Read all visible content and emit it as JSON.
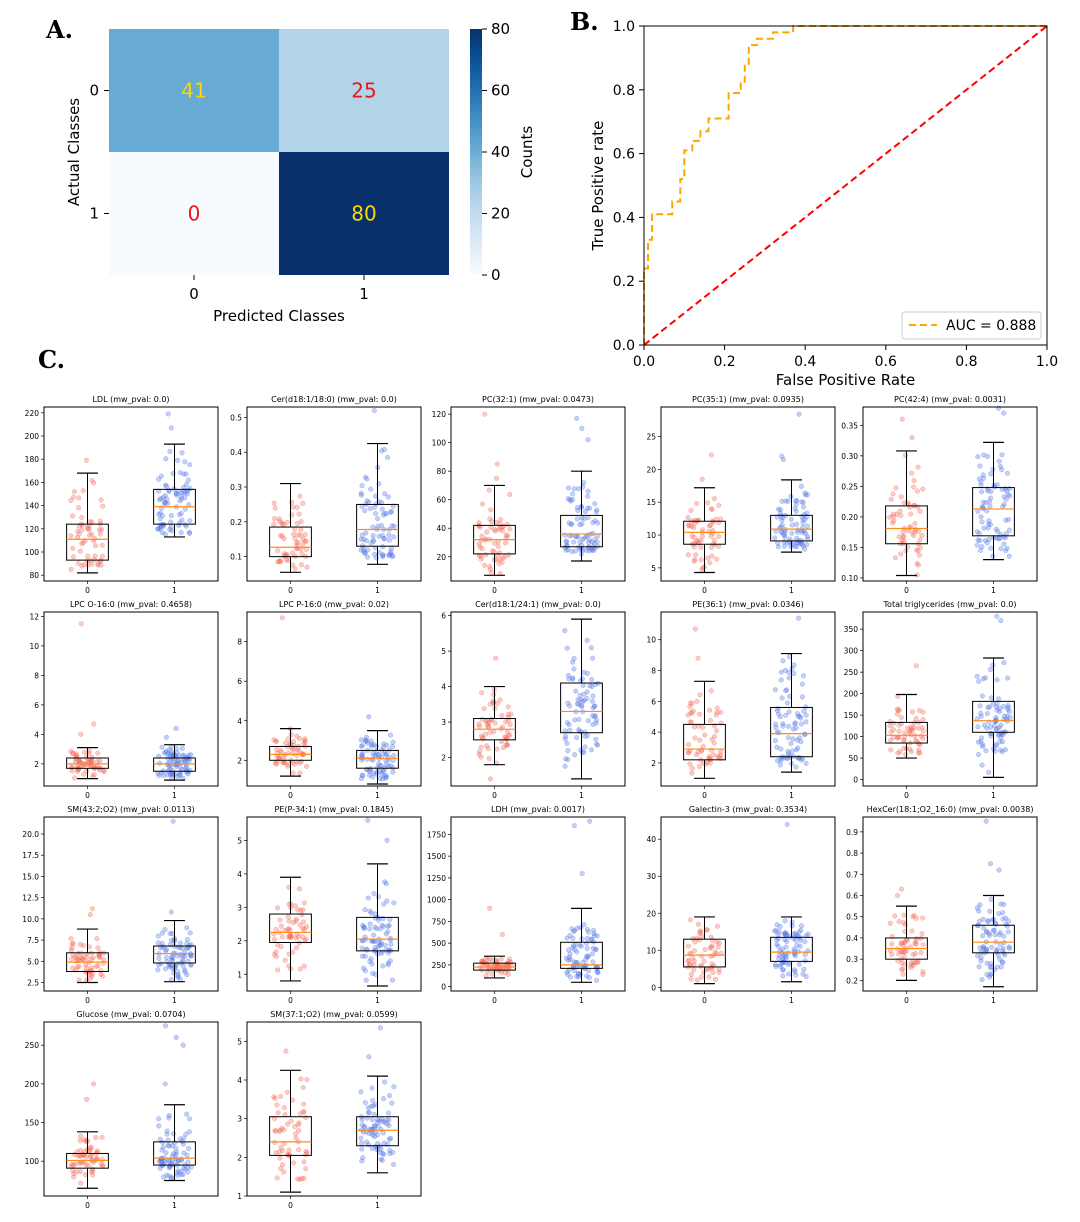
{
  "labels": {
    "a": "A.",
    "b": "B.",
    "c": "C."
  },
  "chart_data": [
    {
      "type": "heatmap",
      "title": "",
      "xlabel": "Predicted Classes",
      "ylabel": "Actual Classes",
      "x_categories": [
        "0",
        "1"
      ],
      "y_categories": [
        "0",
        "1"
      ],
      "values": [
        [
          41,
          25
        ],
        [
          0,
          80
        ]
      ],
      "colorbar": {
        "label": "Counts",
        "range": [
          0,
          80
        ],
        "ticks": [
          0,
          20,
          40,
          60,
          80
        ]
      },
      "annotation_colors": [
        [
          "#ffd700",
          "#e8191c"
        ],
        [
          "#e8191c",
          "#ffd700"
        ]
      ]
    },
    {
      "type": "line",
      "xlabel": "False Positive Rate",
      "ylabel": "True Positive rate",
      "xlim": [
        0,
        1
      ],
      "ylim": [
        0,
        1
      ],
      "xticks": [
        "0.0",
        "0.2",
        "0.4",
        "0.6",
        "0.8",
        "1.0"
      ],
      "yticks": [
        "0.0",
        "0.2",
        "0.4",
        "0.6",
        "0.8",
        "1.0"
      ],
      "legend": {
        "position": "bottom-right",
        "entry": "AUC = 0.888"
      },
      "series": [
        {
          "name": "AUC = 0.888",
          "color": "#ffa500",
          "style": "dashed",
          "x": [
            0,
            0,
            0.01,
            0.01,
            0.02,
            0.02,
            0.07,
            0.07,
            0.09,
            0.09,
            0.1,
            0.1,
            0.12,
            0.12,
            0.14,
            0.14,
            0.16,
            0.16,
            0.21,
            0.21,
            0.24,
            0.24,
            0.25,
            0.25,
            0.26,
            0.26,
            0.28,
            0.28,
            0.32,
            0.32,
            0.37,
            0.37,
            1.0
          ],
          "y": [
            0,
            0.24,
            0.24,
            0.33,
            0.33,
            0.41,
            0.41,
            0.45,
            0.45,
            0.52,
            0.52,
            0.61,
            0.61,
            0.64,
            0.64,
            0.67,
            0.67,
            0.71,
            0.71,
            0.79,
            0.79,
            0.82,
            0.82,
            0.88,
            0.88,
            0.94,
            0.94,
            0.96,
            0.96,
            0.98,
            0.98,
            1.0,
            1.0
          ]
        },
        {
          "name": "chance",
          "color": "#ff0000",
          "style": "dashed",
          "x": [
            0,
            1
          ],
          "y": [
            0,
            1
          ]
        }
      ]
    },
    {
      "type": "boxplot",
      "categories": [
        "0",
        "1"
      ],
      "colors": {
        "0": "#f4695a",
        "1": "#5578e6",
        "median": "#ff8c1a"
      },
      "panels": [
        {
          "title": "LDL (mw_pval: 0.0)",
          "ylim": [
            75,
            225
          ],
          "yticks": [
            80,
            100,
            120,
            140,
            160,
            180,
            200,
            220
          ],
          "boxes": [
            {
              "lo": 82,
              "q1": 93,
              "med": 111,
              "q3": 124,
              "hi": 168,
              "out": [
                179
              ]
            },
            {
              "lo": 113,
              "q1": 124,
              "med": 139,
              "q3": 154,
              "hi": 193,
              "out": [
                207,
                219
              ]
            }
          ]
        },
        {
          "title": "Cer(d18:1/18:0) (mw_pval: 0.0)",
          "ylim": [
            0.03,
            0.53
          ],
          "yticks": [
            0.1,
            0.2,
            0.3,
            0.4,
            0.5
          ],
          "boxes": [
            {
              "lo": 0.055,
              "q1": 0.1,
              "med": 0.127,
              "q3": 0.185,
              "hi": 0.31,
              "out": []
            },
            {
              "lo": 0.078,
              "q1": 0.13,
              "med": 0.178,
              "q3": 0.25,
              "hi": 0.425,
              "out": [
                0.52
              ]
            }
          ]
        },
        {
          "title": "PC(32:1) (mw_pval: 0.0473)",
          "ylim": [
            3,
            125
          ],
          "yticks": [
            20,
            40,
            60,
            80,
            100,
            120
          ],
          "boxes": [
            {
              "lo": 7,
              "q1": 22,
              "med": 32,
              "q3": 42,
              "hi": 70,
              "out": [
                75,
                85,
                120
              ]
            },
            {
              "lo": 17,
              "q1": 27,
              "med": 36,
              "q3": 49,
              "hi": 80,
              "out": [
                102,
                110,
                117
              ]
            }
          ]
        },
        {
          "title": "PC(35:1) (mw_pval: 0.0935)",
          "ylim": [
            3,
            29.5
          ],
          "yticks": [
            5,
            10,
            15,
            20,
            25
          ],
          "boxes": [
            {
              "lo": 4.3,
              "q1": 8.6,
              "med": 10.4,
              "q3": 12.1,
              "hi": 17.2,
              "out": [
                18.5,
                22.2
              ]
            },
            {
              "lo": 7.4,
              "q1": 9.1,
              "med": 10.9,
              "q3": 13.0,
              "hi": 18.4,
              "out": [
                21.5,
                22,
                28.4
              ]
            }
          ]
        },
        {
          "title": "PC(42:4) (mw_pval: 0.0031)",
          "ylim": [
            0.095,
            0.38
          ],
          "yticks": [
            0.1,
            0.15,
            0.2,
            0.25,
            0.3,
            0.35
          ],
          "boxes": [
            {
              "lo": 0.104,
              "q1": 0.156,
              "med": 0.181,
              "q3": 0.218,
              "hi": 0.308,
              "out": [
                0.33,
                0.36
              ]
            },
            {
              "lo": 0.13,
              "q1": 0.169,
              "med": 0.213,
              "q3": 0.248,
              "hi": 0.322,
              "out": [
                0.37,
                0.378
              ]
            }
          ]
        },
        {
          "title": "LPC O-16:0 (mw_pval: 0.4658)",
          "ylim": [
            0.5,
            12.3
          ],
          "yticks": [
            2,
            4,
            6,
            8,
            10,
            12
          ],
          "boxes": [
            {
              "lo": 1.0,
              "q1": 1.7,
              "med": 2.0,
              "q3": 2.4,
              "hi": 3.1,
              "out": [
                4.0,
                4.7,
                11.5
              ]
            },
            {
              "lo": 0.9,
              "q1": 1.5,
              "med": 2.0,
              "q3": 2.4,
              "hi": 3.3,
              "out": [
                3.8,
                4.4
              ]
            }
          ]
        },
        {
          "title": "LPC P-16:0 (mw_pval: 0.02)",
          "ylim": [
            0.7,
            9.5
          ],
          "yticks": [
            2,
            4,
            6,
            8
          ],
          "boxes": [
            {
              "lo": 1.2,
              "q1": 2.0,
              "med": 2.3,
              "q3": 2.7,
              "hi": 3.6,
              "out": [
                9.2
              ]
            },
            {
              "lo": 0.8,
              "q1": 1.6,
              "med": 2.1,
              "q3": 2.5,
              "hi": 3.5,
              "out": [
                4.2
              ]
            }
          ]
        },
        {
          "title": "Cer(d18:1/24:1) (mw_pval: 0.0)",
          "ylim": [
            1.2,
            6.1
          ],
          "yticks": [
            2,
            3,
            4,
            5,
            6
          ],
          "boxes": [
            {
              "lo": 1.8,
              "q1": 2.5,
              "med": 2.8,
              "q3": 3.1,
              "hi": 4.0,
              "out": [
                1.4,
                4.8
              ]
            },
            {
              "lo": 1.4,
              "q1": 2.7,
              "med": 3.3,
              "q3": 4.1,
              "hi": 5.9,
              "out": []
            }
          ]
        },
        {
          "title": "PE(36:1) (mw_pval: 0.0346)",
          "ylim": [
            0.5,
            11.8
          ],
          "yticks": [
            2,
            4,
            6,
            8,
            10
          ],
          "boxes": [
            {
              "lo": 1.0,
              "q1": 2.2,
              "med": 2.9,
              "q3": 4.5,
              "hi": 7.3,
              "out": [
                8.8,
                10.7
              ]
            },
            {
              "lo": 1.4,
              "q1": 2.4,
              "med": 3.9,
              "q3": 5.6,
              "hi": 9.1,
              "out": [
                11.4
              ]
            }
          ]
        },
        {
          "title": "Total triglycerides (mw_pval: 0.0)",
          "ylim": [
            -15,
            390
          ],
          "yticks": [
            0,
            50,
            100,
            150,
            200,
            250,
            300,
            350
          ],
          "boxes": [
            {
              "lo": 50,
              "q1": 85,
              "med": 103,
              "q3": 133,
              "hi": 198,
              "out": [
                265
              ]
            },
            {
              "lo": 5,
              "q1": 110,
              "med": 137,
              "q3": 182,
              "hi": 283,
              "out": [
                370,
                380
              ]
            }
          ]
        },
        {
          "title": "SM(43:2;O2) (mw_pval: 0.0113)",
          "ylim": [
            1.5,
            22
          ],
          "yticks": [
            2.5,
            5.0,
            7.5,
            10.0,
            12.5,
            15.0,
            17.5,
            20.0
          ],
          "boxes": [
            {
              "lo": 2.5,
              "q1": 3.8,
              "med": 4.9,
              "q3": 6.0,
              "hi": 8.8,
              "out": [
                10.5,
                11.2
              ]
            },
            {
              "lo": 2.6,
              "q1": 4.8,
              "med": 5.9,
              "q3": 6.8,
              "hi": 9.8,
              "out": [
                10.8,
                21.5
              ]
            }
          ]
        },
        {
          "title": "PE(P-34:1) (mw_pval: 0.1845)",
          "ylim": [
            0.5,
            5.7
          ],
          "yticks": [
            1,
            2,
            3,
            4,
            5
          ],
          "boxes": [
            {
              "lo": 0.8,
              "q1": 1.95,
              "med": 2.25,
              "q3": 2.8,
              "hi": 3.9,
              "out": []
            },
            {
              "lo": 0.65,
              "q1": 1.7,
              "med": 2.05,
              "q3": 2.7,
              "hi": 4.3,
              "out": [
                5.0,
                5.6
              ]
            }
          ]
        },
        {
          "title": "LDH (mw_pval: 0.0017)",
          "ylim": [
            -50,
            1950
          ],
          "yticks": [
            0,
            250,
            500,
            750,
            1000,
            1250,
            1500,
            1750
          ],
          "boxes": [
            {
              "lo": 100,
              "q1": 190,
              "med": 225,
              "q3": 270,
              "hi": 350,
              "out": [
                600,
                900
              ]
            },
            {
              "lo": 50,
              "q1": 210,
              "med": 250,
              "q3": 510,
              "hi": 900,
              "out": [
                1300,
                1850,
                1900
              ]
            }
          ]
        },
        {
          "title": "Galectin-3 (mw_pval: 0.3534)",
          "ylim": [
            -1,
            46
          ],
          "yticks": [
            0,
            10,
            20,
            30,
            40
          ],
          "boxes": [
            {
              "lo": 1,
              "q1": 5.5,
              "med": 8.7,
              "q3": 13,
              "hi": 19,
              "out": []
            },
            {
              "lo": 1.5,
              "q1": 7,
              "med": 9.5,
              "q3": 13.5,
              "hi": 19,
              "out": [
                44
              ]
            }
          ]
        },
        {
          "title": "HexCer(18:1;O2_16:0) (mw_pval: 0.0038)",
          "ylim": [
            0.15,
            0.97
          ],
          "yticks": [
            0.2,
            0.3,
            0.4,
            0.5,
            0.6,
            0.7,
            0.8,
            0.9
          ],
          "boxes": [
            {
              "lo": 0.2,
              "q1": 0.3,
              "med": 0.35,
              "q3": 0.4,
              "hi": 0.55,
              "out": [
                0.6,
                0.63
              ]
            },
            {
              "lo": 0.17,
              "q1": 0.33,
              "med": 0.38,
              "q3": 0.46,
              "hi": 0.6,
              "out": [
                0.72,
                0.75,
                0.95
              ]
            }
          ]
        },
        {
          "title": "Glucose (mw_pval: 0.0704)",
          "ylim": [
            55,
            280
          ],
          "yticks": [
            100,
            150,
            200,
            250
          ],
          "boxes": [
            {
              "lo": 65,
              "q1": 91,
              "med": 101,
              "q3": 110,
              "hi": 138,
              "out": [
                180,
                200
              ]
            },
            {
              "lo": 75,
              "q1": 95,
              "med": 104,
              "q3": 125,
              "hi": 173,
              "out": [
                200,
                250,
                260,
                275
              ]
            }
          ]
        },
        {
          "title": "SM(37:1;O2) (mw_pval: 0.0599)",
          "ylim": [
            1.0,
            5.5
          ],
          "yticks": [
            1,
            2,
            3,
            4,
            5
          ],
          "boxes": [
            {
              "lo": 1.1,
              "q1": 2.05,
              "med": 2.4,
              "q3": 3.05,
              "hi": 4.25,
              "out": [
                4.75
              ]
            },
            {
              "lo": 1.6,
              "q1": 2.3,
              "med": 2.7,
              "q3": 3.05,
              "hi": 4.1,
              "out": [
                4.6,
                5.35
              ]
            }
          ]
        }
      ]
    }
  ]
}
